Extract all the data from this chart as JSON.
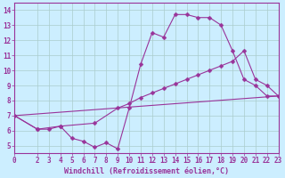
{
  "bg_color": "#cceeff",
  "line_color": "#993399",
  "grid_color": "#aacccc",
  "xlabel": "Windchill (Refroidissement éolien,°C)",
  "xlim": [
    0,
    23
  ],
  "ylim": [
    4.5,
    14.5
  ],
  "yticks": [
    5,
    6,
    7,
    8,
    9,
    10,
    11,
    12,
    13,
    14
  ],
  "xticks": [
    0,
    2,
    3,
    4,
    5,
    6,
    7,
    8,
    9,
    10,
    11,
    12,
    13,
    14,
    15,
    16,
    17,
    18,
    19,
    20,
    21,
    22,
    23
  ],
  "line1_x": [
    0,
    2,
    3,
    4,
    5,
    6,
    7,
    8,
    9,
    10,
    11,
    12,
    13,
    14,
    15,
    16,
    17,
    18,
    19,
    20,
    21,
    22,
    23
  ],
  "line1_y": [
    7.0,
    6.1,
    6.1,
    6.3,
    5.5,
    5.3,
    4.9,
    5.2,
    4.8,
    7.5,
    10.4,
    12.5,
    12.2,
    13.7,
    13.7,
    13.5,
    13.5,
    13.0,
    11.3,
    9.4,
    9.0,
    8.3,
    8.3
  ],
  "line2_x": [
    0,
    23
  ],
  "line2_y": [
    7.0,
    8.3
  ],
  "line3_x": [
    0,
    2,
    4,
    7,
    9,
    10,
    11,
    12,
    13,
    14,
    15,
    16,
    17,
    18,
    19,
    20,
    21,
    22,
    23
  ],
  "line3_y": [
    7.0,
    6.1,
    6.3,
    6.5,
    7.5,
    7.8,
    8.2,
    8.5,
    8.8,
    9.1,
    9.4,
    9.7,
    10.0,
    10.3,
    10.6,
    11.3,
    9.4,
    9.0,
    8.3
  ],
  "marker": "D",
  "markersize": 2.5,
  "fontsize_ticks": 5.5,
  "fontsize_xlabel": 6.0
}
